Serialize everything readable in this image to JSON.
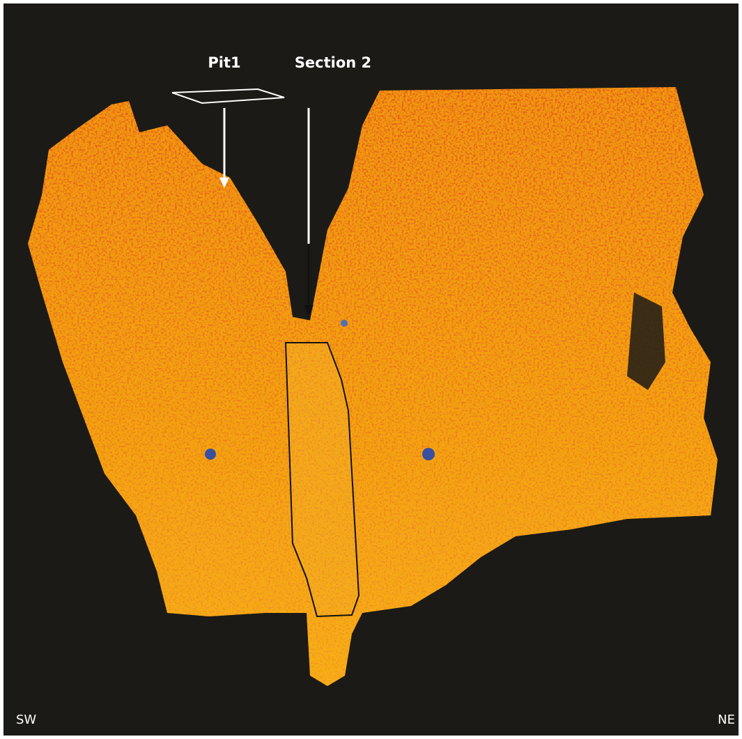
{
  "labels": {
    "pit": "Pit1",
    "section": "Section 2",
    "left_direction": "SW",
    "right_direction": "NE"
  }
}
